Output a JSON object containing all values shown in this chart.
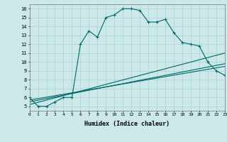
{
  "xlabel": "Humidex (Indice chaleur)",
  "bg_color": "#cce8e8",
  "line_color": "#006868",
  "line1_x": [
    0,
    1,
    2,
    3,
    4,
    5,
    6,
    7,
    8,
    9,
    10,
    11,
    12,
    13,
    14,
    15,
    16,
    17,
    18,
    19,
    20,
    21,
    22,
    23
  ],
  "line1_y": [
    6.0,
    5.0,
    5.0,
    5.5,
    6.0,
    6.0,
    12.0,
    13.5,
    12.8,
    15.0,
    15.3,
    16.0,
    16.0,
    15.8,
    14.5,
    14.5,
    14.8,
    13.3,
    12.2,
    12.0,
    11.8,
    10.0,
    9.0,
    8.5
  ],
  "line2_x": [
    0,
    23
  ],
  "line2_y": [
    5.2,
    11.0
  ],
  "line3_x": [
    0,
    23
  ],
  "line3_y": [
    5.5,
    9.8
  ],
  "line4_x": [
    0,
    23
  ],
  "line4_y": [
    5.7,
    9.5
  ],
  "xlim": [
    0,
    23
  ],
  "ylim": [
    4.5,
    16.5
  ],
  "yticks": [
    5,
    6,
    7,
    8,
    9,
    10,
    11,
    12,
    13,
    14,
    15,
    16
  ],
  "xtick_labels": [
    "0",
    "1",
    "2",
    "3",
    "4",
    "5",
    "6",
    "7",
    "8",
    "9",
    "10",
    "11",
    "12",
    "13",
    "14",
    "15",
    "16",
    "17",
    "18",
    "19",
    "20",
    "21",
    "22",
    "23"
  ]
}
